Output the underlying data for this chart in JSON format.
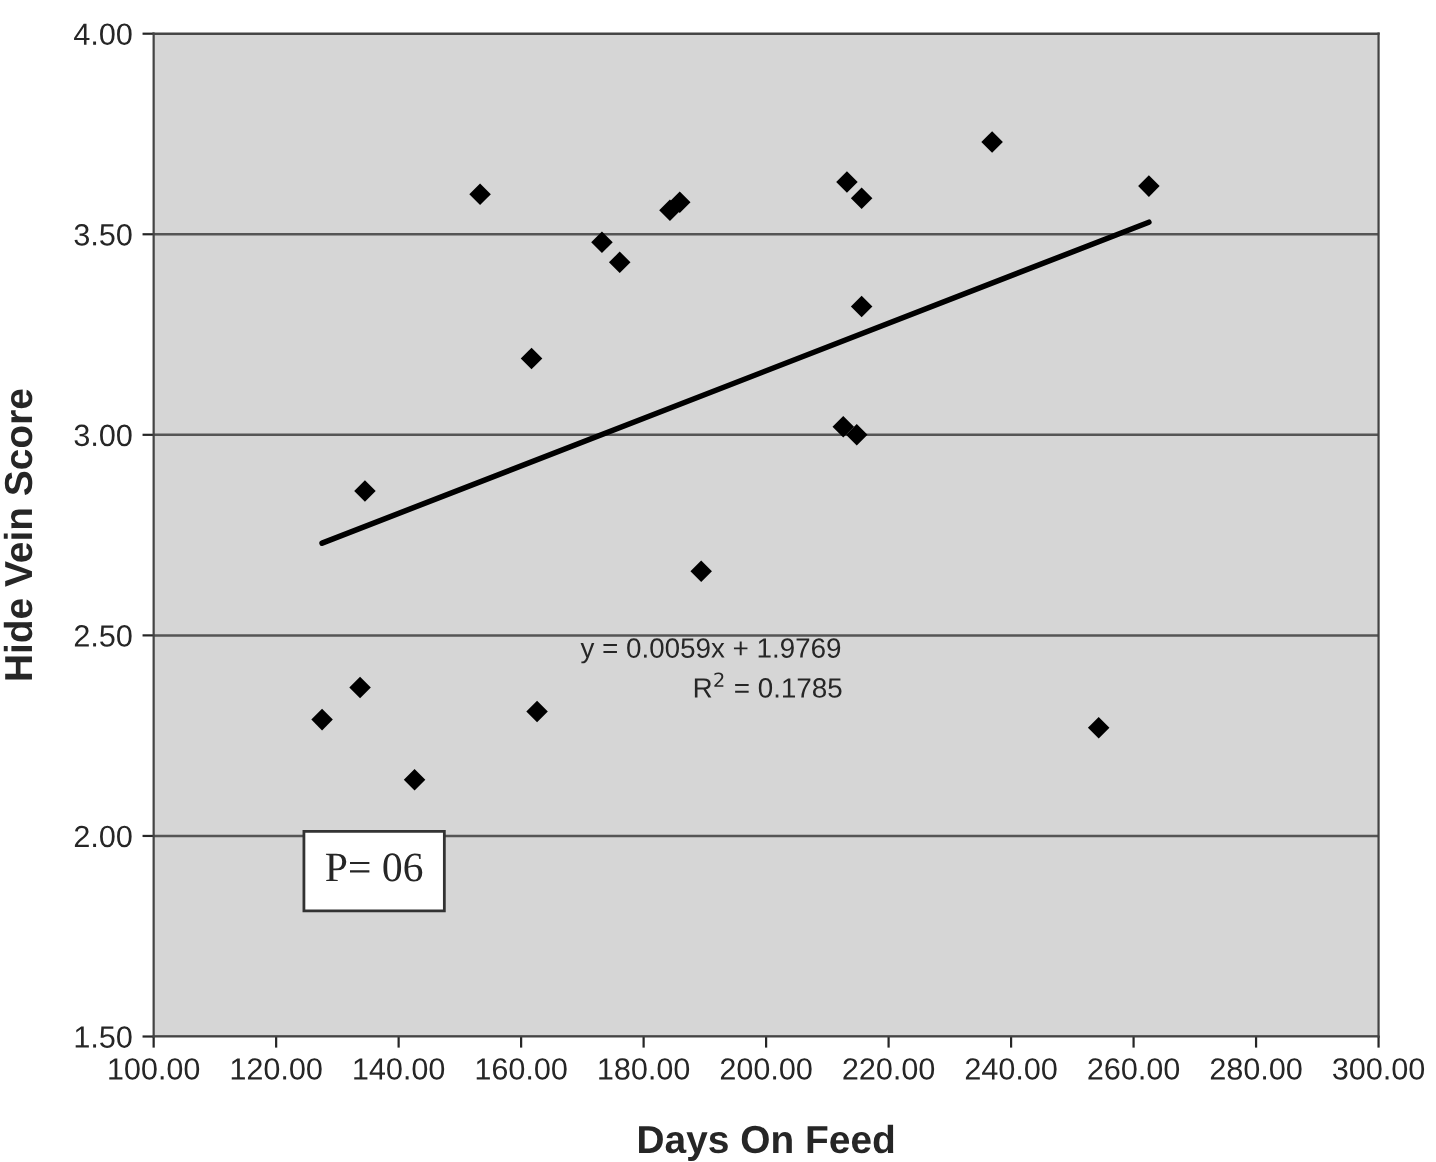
{
  "chart_data": {
    "type": "scatter",
    "xlabel": "Days On Feed",
    "ylabel": "Hide Vein Score",
    "series": [
      {
        "color": "#000000",
        "marker": "diamond",
        "x": [
          153.3,
          173.2,
          176.1,
          184.3,
          185.9,
          161.7,
          134.5,
          189.4,
          133.7,
          127.5,
          162.6,
          142.6,
          236.9,
          213.2,
          215.6,
          262.5,
          215.6,
          212.6,
          214.8,
          254.3
        ],
        "values": [
          3.6,
          3.48,
          3.43,
          3.56,
          3.58,
          3.19,
          2.86,
          2.66,
          2.37,
          2.29,
          2.31,
          2.14,
          3.73,
          3.63,
          3.59,
          3.62,
          3.32,
          3.02,
          3.0,
          2.27
        ]
      },
      {
        "type": "line",
        "color": "#000000",
        "marker": "none",
        "line_style": "solid",
        "x": [
          127.5,
          262.5
        ],
        "values": [
          2.73,
          3.53
        ]
      }
    ],
    "annotations": [
      "y = 0.0059x + 1.9769",
      "R$^{2}$ = 0.1785",
      "P= 06"
    ],
    "xlim": [
      100,
      300
    ],
    "ylim": [
      1.5,
      4.0
    ],
    "xticks": [
      {
        "value": 100,
        "label": "100.00"
      },
      {
        "value": 120,
        "label": "120.00"
      },
      {
        "value": 140,
        "label": "140.00"
      },
      {
        "value": 160,
        "label": "160.00"
      },
      {
        "value": 180,
        "label": "180.00"
      },
      {
        "value": 200,
        "label": "200.00"
      },
      {
        "value": 220,
        "label": "220.00"
      },
      {
        "value": 240,
        "label": "240.00"
      },
      {
        "value": 260,
        "label": "260.00"
      },
      {
        "value": 280,
        "label": "280.00"
      },
      {
        "value": 300,
        "label": "300.00"
      }
    ],
    "yticks": [
      {
        "value": 1.5,
        "label": "1.50"
      },
      {
        "value": 2.0,
        "label": "2.00"
      },
      {
        "value": 2.5,
        "label": "2.50"
      },
      {
        "value": 3.0,
        "label": "3.00"
      },
      {
        "value": 3.5,
        "label": "3.50"
      },
      {
        "value": 4.0,
        "label": "4.00"
      }
    ],
    "grid": "y",
    "legend": false
  }
}
